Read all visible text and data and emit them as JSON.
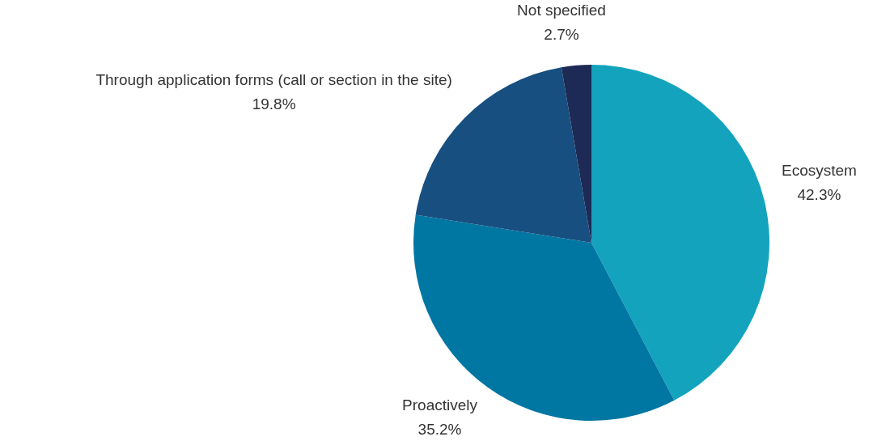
{
  "chart_data": {
    "type": "pie",
    "categories": [
      "Ecosystem",
      "Proactively",
      "Through application forms (call or section in the site)",
      "Not specified"
    ],
    "values": [
      42.3,
      35.2,
      19.8,
      2.7
    ],
    "value_labels": [
      "42.3%",
      "35.2%",
      "19.8%",
      "2.7%"
    ],
    "colors": [
      "#13a3bd",
      "#0077a3",
      "#174f80",
      "#1d2a55"
    ],
    "legend": false
  }
}
